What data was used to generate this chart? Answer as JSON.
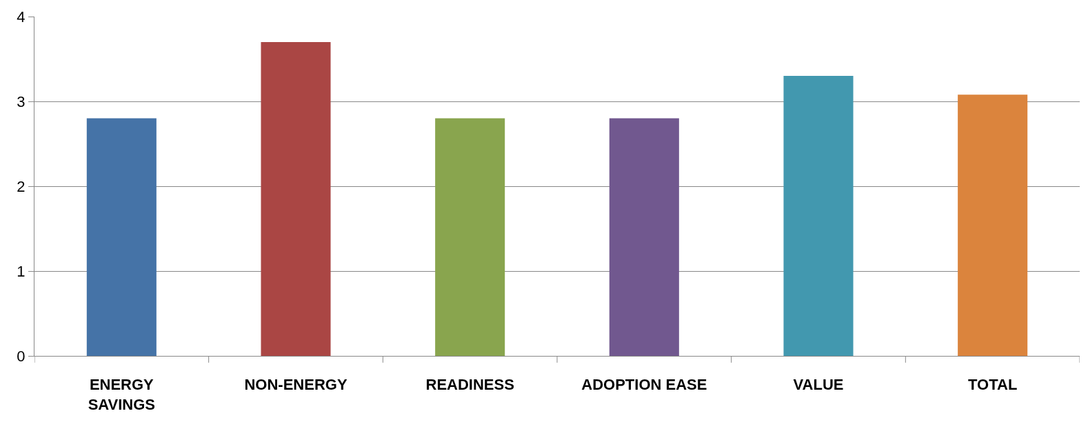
{
  "chart_data": {
    "type": "bar",
    "categories": [
      "ENERGY SAVINGS",
      "NON-ENERGY",
      "READINESS",
      "ADOPTION EASE",
      "VALUE",
      "TOTAL"
    ],
    "values": [
      2.8,
      3.7,
      2.8,
      2.8,
      3.3,
      3.08
    ],
    "colors": [
      "#4573a7",
      "#aa4644",
      "#89a54e",
      "#71588f",
      "#4298af",
      "#db843d"
    ],
    "ylim": [
      0,
      4
    ],
    "yticks": [
      0,
      1,
      2,
      3,
      4
    ],
    "grid": "y",
    "legend": false
  }
}
